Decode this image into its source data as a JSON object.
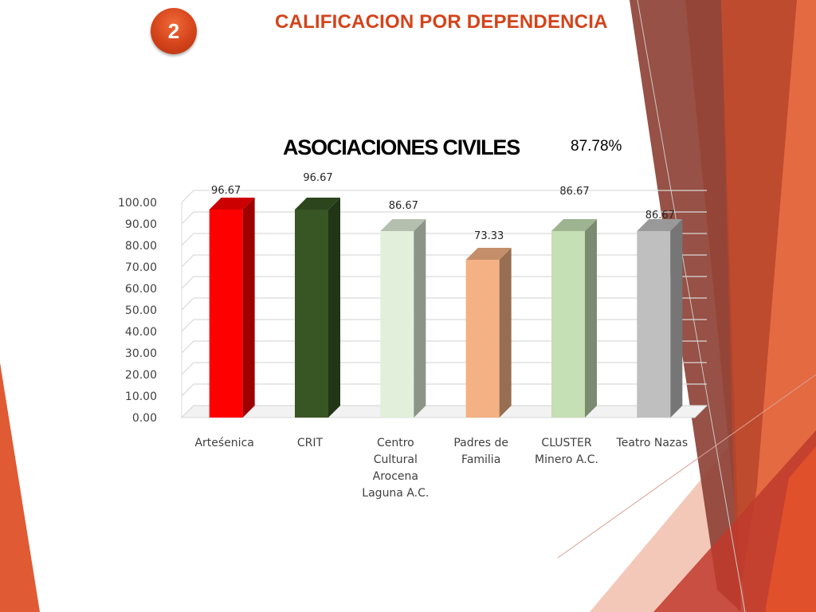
{
  "header": {
    "badge": "2",
    "title": "CALIFICACION POR DEPENDENCIA"
  },
  "chart_title": "ASOCIACIONES CIVILES",
  "chart_total": "87.78%",
  "colors": {
    "accent": "#d4431a",
    "deco_dark": "#8b3a2e",
    "deco_mid": "#c0392b",
    "deco_light": "#f0b8a6"
  },
  "chart_data": {
    "type": "bar",
    "title": "ASOCIACIONES CIVILES",
    "categories": [
      [
        "Arteśenica"
      ],
      [
        "CRIT"
      ],
      [
        "Centro",
        "Cultural",
        "Arocena",
        "Laguna A.C."
      ],
      [
        "Padres de",
        "Familia"
      ],
      [
        "CLUSTER",
        "Minero A.C."
      ],
      [
        "Teatro Nazas"
      ]
    ],
    "values": [
      96.67,
      96.67,
      86.67,
      73.33,
      86.67,
      86.67
    ],
    "value_labels": [
      "96.67",
      "96.67",
      "86.67",
      "73.33",
      "86.67",
      "86.67"
    ],
    "bar_colors": [
      "#ff0000",
      "#375623",
      "#e2efda",
      "#f4b183",
      "#c5e0b4",
      "#bfbfbf"
    ],
    "y_ticks": [
      "0.00",
      "10.00",
      "20.00",
      "30.00",
      "40.00",
      "50.00",
      "60.00",
      "70.00",
      "80.00",
      "90.00",
      "100.00"
    ],
    "ylim": [
      0,
      100
    ],
    "grid": true,
    "style": "3d-column"
  }
}
